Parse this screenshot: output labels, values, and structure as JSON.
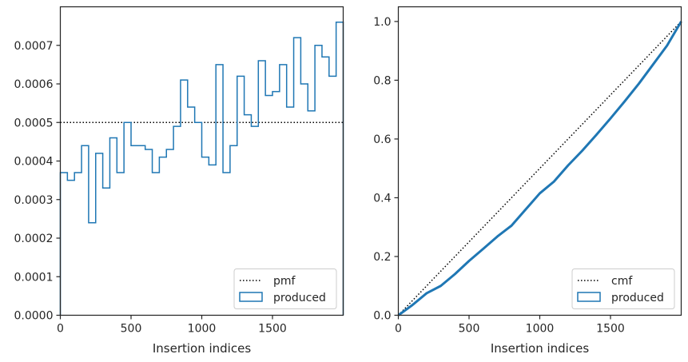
{
  "chart_data": [
    {
      "type": "line",
      "subtype": "step-histogram",
      "xlabel": "Insertion indices",
      "ylabel": "",
      "xlim": [
        0,
        2000
      ],
      "ylim": [
        0,
        0.0008
      ],
      "xticks": [
        0,
        500,
        1000,
        1500
      ],
      "xtick_labels": [
        "0",
        "500",
        "1000",
        "1500"
      ],
      "yticks": [
        0,
        0.0001,
        0.0002,
        0.0003,
        0.0004,
        0.0005,
        0.0006,
        0.0007
      ],
      "ytick_labels": [
        "0.0000",
        "0.0001",
        "0.0002",
        "0.0003",
        "0.0004",
        "0.0005",
        "0.0006",
        "0.0007"
      ],
      "bin_width": 50,
      "series": [
        {
          "name": "pmf",
          "style": "dotted",
          "color": "#000000",
          "value": 0.0005
        },
        {
          "name": "produced",
          "style": "step",
          "color": "#1f77b4",
          "bin_edges_start": 0,
          "values": [
            0.00037,
            0.00035,
            0.00037,
            0.00044,
            0.00024,
            0.00042,
            0.00033,
            0.00046,
            0.00037,
            0.0005,
            0.00044,
            0.00044,
            0.00043,
            0.00037,
            0.00041,
            0.00043,
            0.00049,
            0.00061,
            0.00054,
            0.0005,
            0.00041,
            0.00039,
            0.00065,
            0.00037,
            0.00044,
            0.00062,
            0.00052,
            0.00049,
            0.00066,
            0.00057,
            0.00058,
            0.00065,
            0.00054,
            0.00072,
            0.0006,
            0.00053,
            0.0007,
            0.00067,
            0.00062,
            0.00076
          ]
        }
      ],
      "legend": {
        "placement": "lower right",
        "entries": [
          "pmf",
          "produced"
        ]
      }
    },
    {
      "type": "line",
      "subtype": "cumulative",
      "xlabel": "Insertion indices",
      "ylabel": "",
      "xlim": [
        0,
        2000
      ],
      "ylim": [
        0,
        1.05
      ],
      "xticks": [
        0,
        500,
        1000,
        1500
      ],
      "xtick_labels": [
        "0",
        "500",
        "1000",
        "1500"
      ],
      "yticks": [
        0,
        0.2,
        0.4,
        0.6,
        0.8,
        1.0
      ],
      "ytick_labels": [
        "0.0",
        "0.2",
        "0.4",
        "0.6",
        "0.8",
        "1.0"
      ],
      "series": [
        {
          "name": "cmf",
          "style": "dotted",
          "color": "#000000",
          "x": [
            0,
            2000
          ],
          "y": [
            0,
            1.0
          ]
        },
        {
          "name": "produced",
          "style": "solid-thick",
          "color": "#1f77b4",
          "x": [
            0,
            100,
            200,
            300,
            400,
            500,
            600,
            700,
            800,
            900,
            1000,
            1100,
            1200,
            1300,
            1400,
            1500,
            1600,
            1700,
            1800,
            1900,
            2000
          ],
          "y": [
            0,
            0.035,
            0.075,
            0.1,
            0.14,
            0.185,
            0.226,
            0.268,
            0.305,
            0.36,
            0.415,
            0.455,
            0.51,
            0.56,
            0.614,
            0.67,
            0.728,
            0.788,
            0.853,
            0.918,
            1.0
          ]
        }
      ],
      "legend": {
        "placement": "lower right",
        "entries": [
          "cmf",
          "produced"
        ]
      }
    }
  ]
}
